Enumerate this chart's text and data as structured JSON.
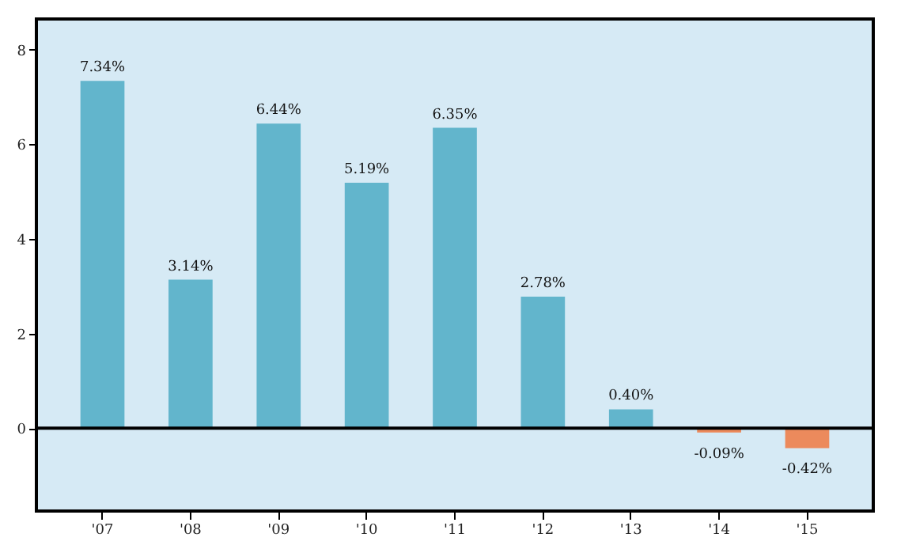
{
  "chart_data": {
    "type": "bar",
    "categories": [
      "'07",
      "'08",
      "'09",
      "'10",
      "'11",
      "'12",
      "'13",
      "'14",
      "'15"
    ],
    "values": [
      7.34,
      3.14,
      6.44,
      5.19,
      6.35,
      2.78,
      0.4,
      -0.09,
      -0.42
    ],
    "value_labels": [
      "7.34%",
      "3.14%",
      "6.44%",
      "5.19%",
      "6.35%",
      "2.78%",
      "0.40%",
      "-0.09%",
      "-0.42%"
    ],
    "colors": [
      "#62b5cc",
      "#62b5cc",
      "#62b5cc",
      "#62b5cc",
      "#62b5cc",
      "#62b5cc",
      "#62b5cc",
      "#ec8a5c",
      "#ec8a5c"
    ],
    "ylim": [
      -1.75,
      8.65
    ],
    "yticks": [
      0,
      2,
      4,
      6,
      8
    ],
    "ref_lines": [
      {
        "axis": "y",
        "value": 0,
        "color": "#000000"
      }
    ],
    "grid": false
  }
}
